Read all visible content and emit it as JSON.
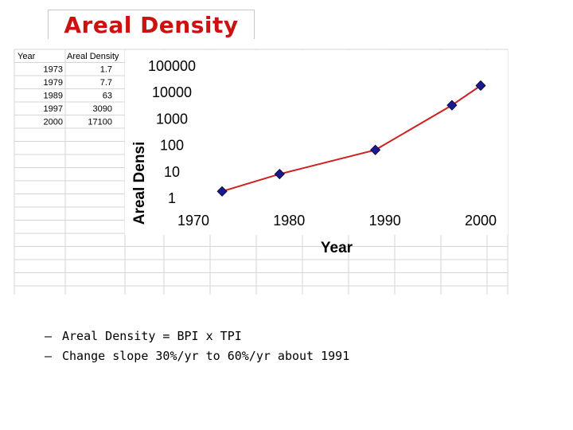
{
  "title": "Areal Density",
  "table": {
    "headers": [
      "Year",
      "Areal Density"
    ],
    "rows": [
      [
        "1973",
        "1.7"
      ],
      [
        "1979",
        "7.7"
      ],
      [
        "1989",
        "63"
      ],
      [
        "1997",
        "3090"
      ],
      [
        "2000",
        "17100"
      ]
    ]
  },
  "chart_data": {
    "type": "line",
    "x": [
      1973,
      1979,
      1989,
      1997,
      2000
    ],
    "values": [
      1.7,
      7.7,
      63,
      3090,
      17100
    ],
    "xlabel": "Year",
    "ylabel": "Areal Densi",
    "xlim": [
      1970,
      2000
    ],
    "ylim": [
      1,
      100000
    ],
    "yscale": "log",
    "xticks": [
      "1970",
      "1980",
      "1990",
      "2000"
    ],
    "yticks": [
      "1",
      "10",
      "100",
      "1000",
      "10000",
      "100000"
    ],
    "line_color": "#cc2222",
    "marker_color": "#1a1a8c",
    "grid": false,
    "legend": "none"
  },
  "bullets": [
    {
      "dash": "–",
      "text": "Areal Density = BPI x TPI"
    },
    {
      "dash": "–",
      "text": "Change slope 30%/yr to 60%/yr about 1991"
    }
  ]
}
